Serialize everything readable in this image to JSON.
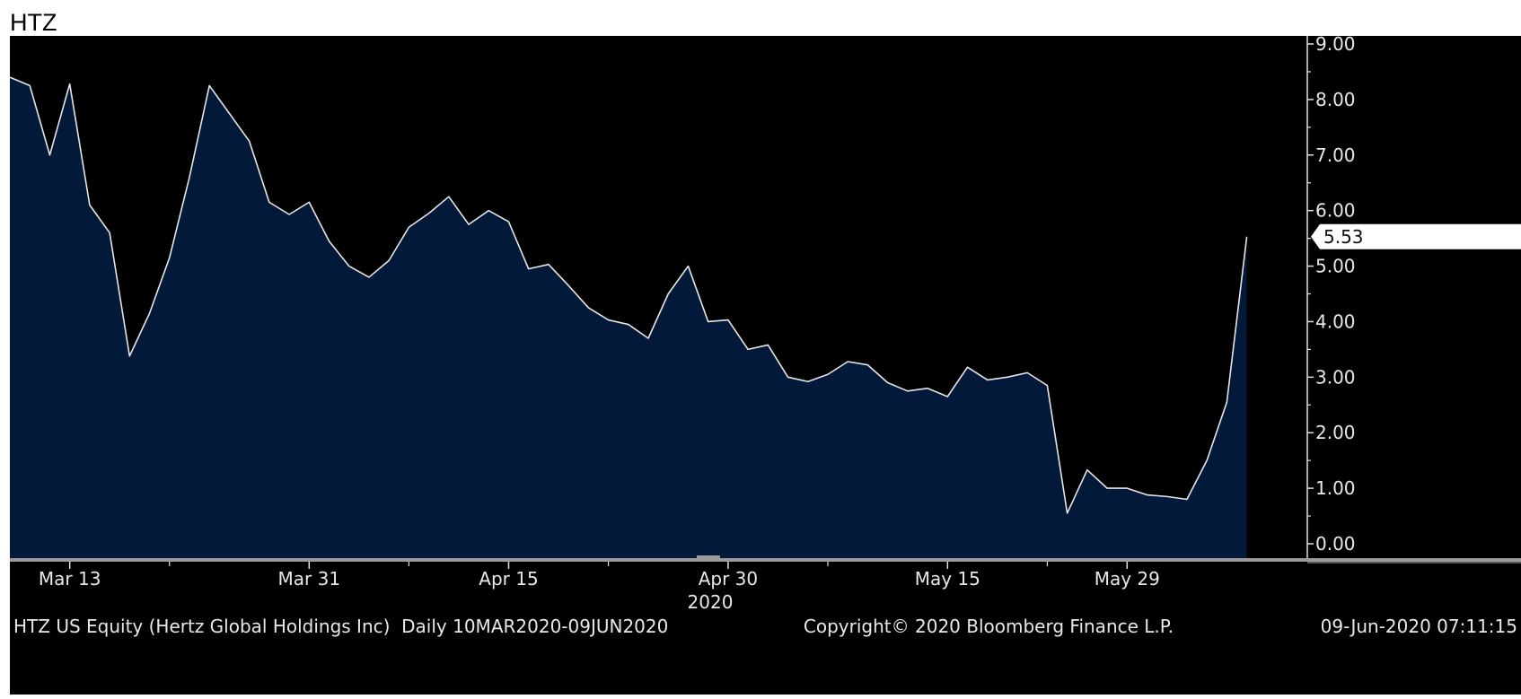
{
  "header": {
    "title": "HTZ"
  },
  "chart_data": {
    "type": "area",
    "title": "HTZ",
    "xlabel": "2020",
    "ylabel": "",
    "ylim": [
      -0.2,
      9.35
    ],
    "y_ticks": [
      "0.00",
      "1.00",
      "2.00",
      "3.00",
      "4.00",
      "5.00",
      "6.00",
      "7.00",
      "8.00",
      "9.00"
    ],
    "x_tick_labels": [
      {
        "label": "Mar 13",
        "index": 3
      },
      {
        "label": "Mar 31",
        "index": 15
      },
      {
        "label": "Apr 15",
        "index": 25
      },
      {
        "label": "Apr 30",
        "index": 36
      },
      {
        "label": "May 15",
        "index": 47
      },
      {
        "label": "May 29",
        "index": 56
      }
    ],
    "last_value_label": "5.53",
    "grid": false,
    "colors": {
      "background": "#000000",
      "fill": "#03193a",
      "line": "#e6e6e6",
      "tag_bg": "#ffffff",
      "tag_text": "#111111"
    },
    "series": [
      {
        "x": [
          "2020-03-10",
          "2020-03-11",
          "2020-03-12",
          "2020-03-13",
          "2020-03-16",
          "2020-03-17",
          "2020-03-18",
          "2020-03-19",
          "2020-03-20",
          "2020-03-23",
          "2020-03-24",
          "2020-03-25",
          "2020-03-26",
          "2020-03-27",
          "2020-03-30",
          "2020-03-31",
          "2020-04-01",
          "2020-04-02",
          "2020-04-03",
          "2020-04-06",
          "2020-04-07",
          "2020-04-08",
          "2020-04-09",
          "2020-04-13",
          "2020-04-14",
          "2020-04-15",
          "2020-04-16",
          "2020-04-17",
          "2020-04-20",
          "2020-04-21",
          "2020-04-22",
          "2020-04-23",
          "2020-04-24",
          "2020-04-27",
          "2020-04-28",
          "2020-04-29",
          "2020-04-30",
          "2020-05-01",
          "2020-05-04",
          "2020-05-05",
          "2020-05-06",
          "2020-05-07",
          "2020-05-08",
          "2020-05-11",
          "2020-05-12",
          "2020-05-13",
          "2020-05-14",
          "2020-05-15",
          "2020-05-18",
          "2020-05-19",
          "2020-05-20",
          "2020-05-21",
          "2020-05-22",
          "2020-05-26",
          "2020-05-27",
          "2020-05-28",
          "2020-05-29",
          "2020-06-01",
          "2020-06-02",
          "2020-06-03",
          "2020-06-04",
          "2020-06-05",
          "2020-06-08"
        ],
        "values": [
          8.4,
          8.25,
          7.0,
          8.28,
          6.1,
          5.6,
          3.38,
          4.15,
          5.15,
          6.6,
          8.25,
          7.75,
          7.25,
          6.15,
          5.93,
          6.15,
          5.45,
          5.0,
          4.8,
          5.1,
          5.7,
          5.95,
          6.25,
          5.75,
          6.0,
          5.8,
          4.95,
          5.03,
          4.65,
          4.25,
          4.03,
          3.95,
          3.7,
          4.5,
          5.0,
          4.0,
          4.03,
          3.5,
          3.58,
          3.0,
          2.92,
          3.05,
          3.28,
          3.22,
          2.9,
          2.75,
          2.8,
          2.65,
          3.18,
          2.95,
          3.0,
          3.08,
          2.85,
          0.55,
          1.33,
          1.0,
          1.0,
          0.88,
          0.85,
          0.8,
          1.5,
          2.55,
          5.53
        ]
      }
    ]
  },
  "footer": {
    "left": "HTZ US Equity (Hertz Global Holdings Inc)  Daily 10MAR2020-09JUN2020",
    "center": "Copyright© 2020 Bloomberg Finance L.P.",
    "right": "09-Jun-2020 07:11:15"
  }
}
